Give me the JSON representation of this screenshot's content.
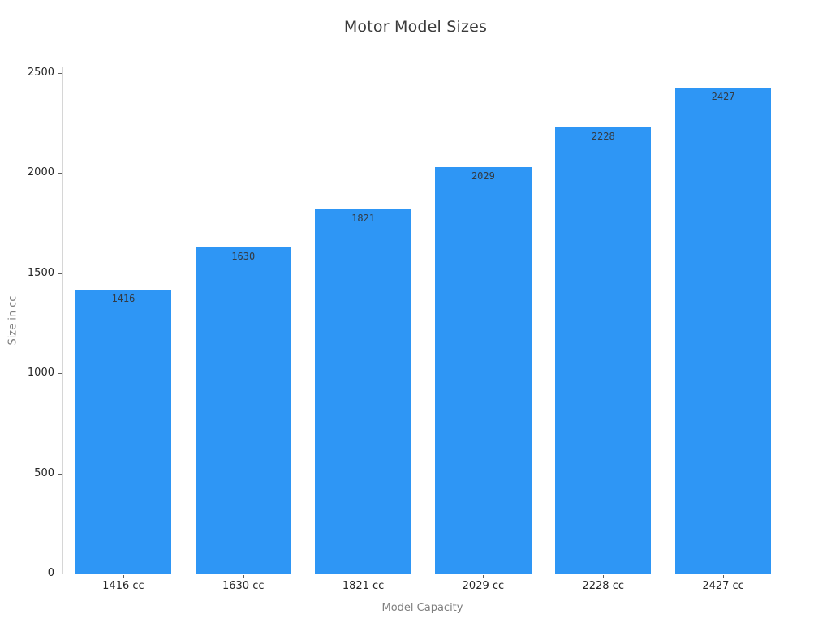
{
  "chart_data": {
    "type": "bar",
    "title": "Motor Model Sizes",
    "xlabel": "Model Capacity",
    "ylabel": "Size in cc",
    "categories": [
      "1416 cc",
      "1630 cc",
      "1821 cc",
      "2029 cc",
      "2228 cc",
      "2427 cc"
    ],
    "values": [
      1416,
      1630,
      1821,
      2029,
      2228,
      2427
    ],
    "bar_value_labels": [
      "1416",
      "1630",
      "1821",
      "2029",
      "2228",
      "2427"
    ],
    "yticks": [
      0,
      500,
      1000,
      1500,
      2000,
      2500
    ],
    "ylim": [
      0,
      2532
    ],
    "grid": false,
    "legend": "none",
    "bar_color": "#2e96f5",
    "bar_relative_width": 0.8
  }
}
